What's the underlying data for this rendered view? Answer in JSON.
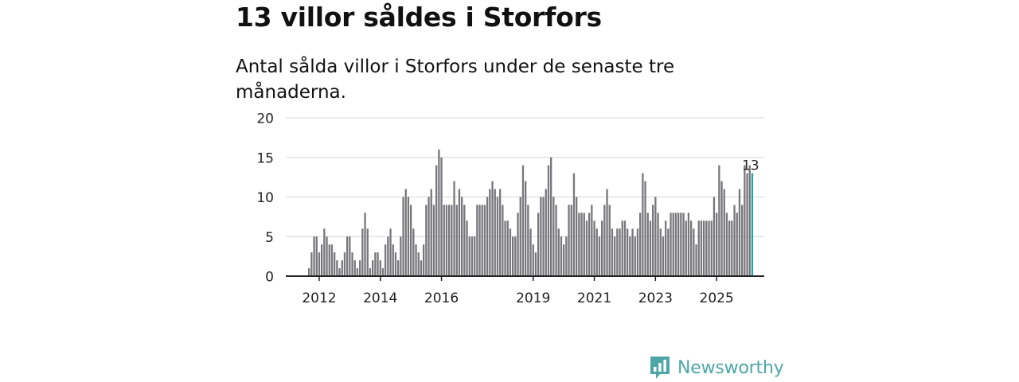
{
  "header": {
    "title": "13 villor såldes i Storfors",
    "subtitle": "Antal sålda villor i Storfors under de senaste tre månaderna."
  },
  "colors": {
    "bar": "#77767b",
    "highlight": "#1ba8a8",
    "grid": "#d6d6d6",
    "axis": "#222222",
    "brand": "#4ea6a6"
  },
  "chart_data": {
    "type": "bar",
    "title": "13 villor såldes i Storfors",
    "subtitle": "Antal sålda villor i Storfors under de senaste tre månaderna.",
    "xlabel": "",
    "ylabel": "",
    "ylim": [
      0,
      20
    ],
    "yticks": [
      0,
      5,
      10,
      15,
      20
    ],
    "grid": true,
    "x_start": "2011-09",
    "x_interval": "month",
    "xticks": [
      {
        "label": "2012",
        "index": 4
      },
      {
        "label": "2014",
        "index": 28
      },
      {
        "label": "2016",
        "index": 52
      },
      {
        "label": "2019",
        "index": 88
      },
      {
        "label": "2021",
        "index": 112
      },
      {
        "label": "2023",
        "index": 136
      },
      {
        "label": "2025",
        "index": 160
      }
    ],
    "values": [
      1,
      3,
      5,
      5,
      3,
      4,
      6,
      5,
      4,
      4,
      3,
      2,
      1,
      2,
      3,
      5,
      5,
      3,
      2,
      1,
      2,
      6,
      8,
      6,
      1,
      2,
      3,
      3,
      2,
      1,
      4,
      5,
      6,
      4,
      3,
      2,
      5,
      10,
      11,
      10,
      9,
      6,
      4,
      3,
      2,
      4,
      9,
      10,
      11,
      9,
      14,
      16,
      15,
      9,
      9,
      9,
      9,
      12,
      9,
      11,
      10,
      9,
      7,
      5,
      5,
      5,
      9,
      9,
      9,
      9,
      10,
      11,
      12,
      11,
      10,
      11,
      9,
      7,
      7,
      6,
      5,
      5,
      8,
      10,
      14,
      12,
      9,
      6,
      4,
      3,
      8,
      10,
      10,
      11,
      14,
      15,
      10,
      9,
      6,
      5,
      4,
      5,
      9,
      9,
      13,
      10,
      8,
      8,
      8,
      7,
      8,
      9,
      7,
      6,
      5,
      7,
      9,
      11,
      9,
      6,
      5,
      6,
      6,
      7,
      7,
      6,
      5,
      6,
      5,
      6,
      8,
      13,
      12,
      8,
      7,
      9,
      10,
      8,
      6,
      5,
      7,
      6,
      8,
      8,
      8,
      8,
      8,
      8,
      7,
      8,
      7,
      6,
      4,
      7,
      7,
      7,
      7,
      7,
      7,
      10,
      8,
      14,
      12,
      11,
      8,
      7,
      7,
      9,
      8,
      11,
      9,
      14,
      13,
      14,
      13
    ],
    "highlight_index": 174,
    "highlight_label": "13"
  },
  "brand": {
    "name": "Newsworthy",
    "logo_icon": "bar-chart-bubble-icon"
  }
}
